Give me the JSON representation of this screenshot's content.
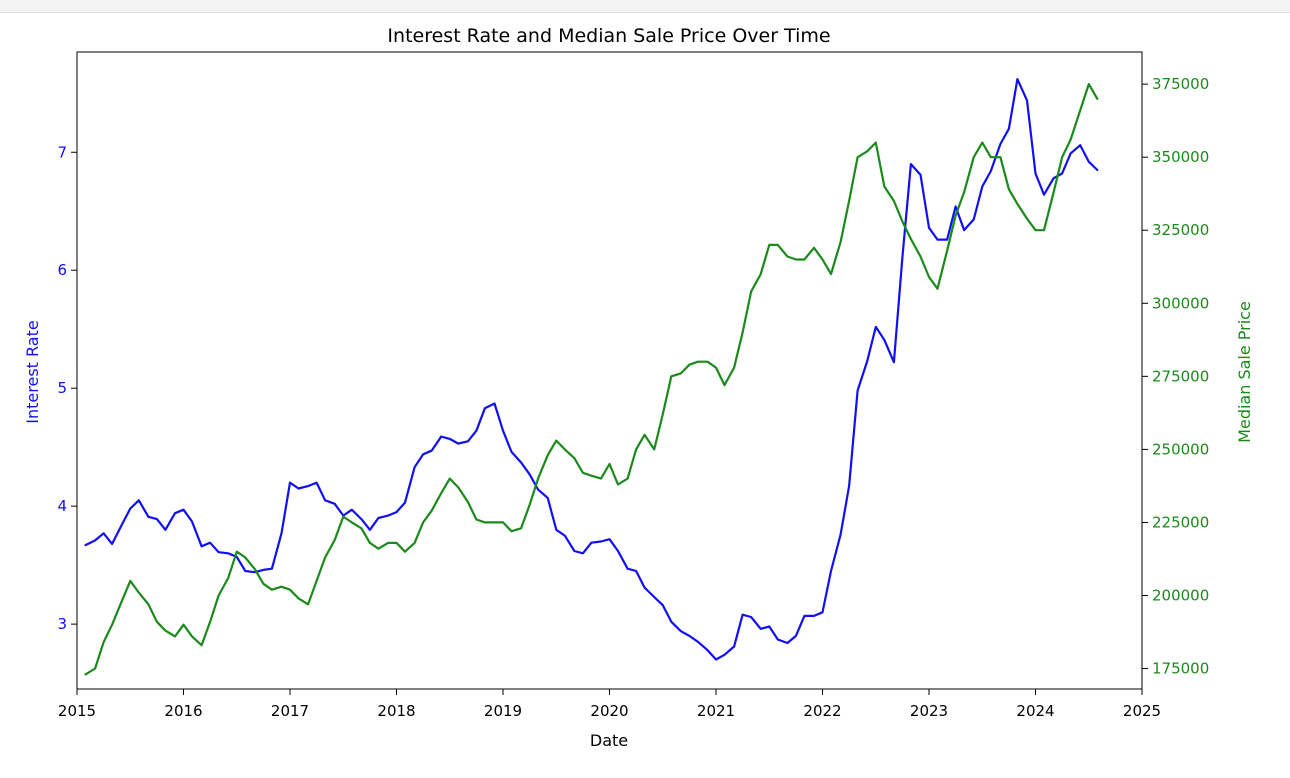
{
  "chart_data": {
    "type": "line",
    "title": "Interest Rate and Median Sale Price Over Time",
    "xlabel": "Date",
    "ylabel_left": "Interest Rate",
    "ylabel_right": "Median Sale Price",
    "xlim": [
      2015.0,
      2025.0
    ],
    "ylim_left": [
      2.45,
      7.85
    ],
    "ylim_right": [
      168000,
      386000
    ],
    "x_ticks": [
      "2015",
      "2016",
      "2017",
      "2018",
      "2019",
      "2020",
      "2021",
      "2022",
      "2023",
      "2024",
      "2025"
    ],
    "y_left_ticks": [
      "3",
      "4",
      "5",
      "6",
      "7"
    ],
    "y_right_ticks": [
      "175000",
      "200000",
      "225000",
      "250000",
      "275000",
      "300000",
      "325000",
      "350000",
      "375000"
    ],
    "grid": false,
    "colors": {
      "interest_rate": "#1010f0",
      "median_sale_price": "#1a8a1a"
    },
    "x": [
      2015.08,
      2015.17,
      2015.25,
      2015.33,
      2015.42,
      2015.5,
      2015.58,
      2015.67,
      2015.75,
      2015.83,
      2015.92,
      2016.0,
      2016.08,
      2016.17,
      2016.25,
      2016.33,
      2016.42,
      2016.5,
      2016.58,
      2016.67,
      2016.75,
      2016.83,
      2016.92,
      2017.0,
      2017.08,
      2017.17,
      2017.25,
      2017.33,
      2017.42,
      2017.5,
      2017.58,
      2017.67,
      2017.75,
      2017.83,
      2017.92,
      2018.0,
      2018.08,
      2018.17,
      2018.25,
      2018.33,
      2018.42,
      2018.5,
      2018.58,
      2018.67,
      2018.75,
      2018.83,
      2018.92,
      2019.0,
      2019.08,
      2019.17,
      2019.25,
      2019.33,
      2019.42,
      2019.5,
      2019.58,
      2019.67,
      2019.75,
      2019.83,
      2019.92,
      2020.0,
      2020.08,
      2020.17,
      2020.25,
      2020.33,
      2020.42,
      2020.5,
      2020.58,
      2020.67,
      2020.75,
      2020.83,
      2020.92,
      2021.0,
      2021.08,
      2021.17,
      2021.25,
      2021.33,
      2021.42,
      2021.5,
      2021.58,
      2021.67,
      2021.75,
      2021.83,
      2021.92,
      2022.0,
      2022.08,
      2022.17,
      2022.25,
      2022.33,
      2022.42,
      2022.5,
      2022.58,
      2022.67,
      2022.75,
      2022.83,
      2022.92,
      2023.0,
      2023.08,
      2023.17,
      2023.25,
      2023.33,
      2023.42,
      2023.5,
      2023.58,
      2023.67,
      2023.75,
      2023.83,
      2023.92,
      2024.0,
      2024.08,
      2024.17,
      2024.25,
      2024.33,
      2024.42,
      2024.5,
      2024.58
    ],
    "series": [
      {
        "name": "Interest Rate",
        "axis": "left",
        "values": [
          3.67,
          3.71,
          3.77,
          3.68,
          3.84,
          3.98,
          4.05,
          3.91,
          3.89,
          3.8,
          3.94,
          3.97,
          3.87,
          3.66,
          3.69,
          3.61,
          3.6,
          3.57,
          3.45,
          3.44,
          3.46,
          3.47,
          3.77,
          4.2,
          4.15,
          4.17,
          4.2,
          4.05,
          4.02,
          3.92,
          3.97,
          3.89,
          3.8,
          3.9,
          3.92,
          3.95,
          4.03,
          4.33,
          4.44,
          4.47,
          4.59,
          4.57,
          4.53,
          4.55,
          4.64,
          4.83,
          4.87,
          4.64,
          4.46,
          4.37,
          4.27,
          4.14,
          4.07,
          3.8,
          3.75,
          3.62,
          3.6,
          3.69,
          3.7,
          3.72,
          3.62,
          3.47,
          3.45,
          3.31,
          3.23,
          3.16,
          3.02,
          2.94,
          2.9,
          2.85,
          2.78,
          2.7,
          2.74,
          2.81,
          3.08,
          3.06,
          2.96,
          2.98,
          2.87,
          2.84,
          2.9,
          3.07,
          3.07,
          3.1,
          3.45,
          3.76,
          4.17,
          4.98,
          5.23,
          5.52,
          5.41,
          5.22,
          6.11,
          6.9,
          6.81,
          6.36,
          6.26,
          6.26,
          6.54,
          6.34,
          6.43,
          6.71,
          6.84,
          7.07,
          7.2,
          7.62,
          7.44,
          6.82,
          6.64,
          6.78,
          6.82,
          6.99,
          7.06,
          6.92,
          6.85
        ]
      },
      {
        "name": "Median Sale Price",
        "axis": "right",
        "values": [
          173000,
          175000,
          184000,
          190000,
          198000,
          205000,
          201000,
          197000,
          191000,
          188000,
          186000,
          190000,
          186000,
          183000,
          191000,
          200000,
          206000,
          215000,
          213000,
          209000,
          204000,
          202000,
          203000,
          202000,
          199000,
          197000,
          205000,
          213000,
          219000,
          227000,
          225000,
          223000,
          218000,
          216000,
          218000,
          218000,
          215000,
          218000,
          225000,
          229000,
          235000,
          240000,
          237000,
          232000,
          226000,
          225000,
          225000,
          225000,
          222000,
          223000,
          231000,
          240000,
          248000,
          253000,
          250000,
          247000,
          242000,
          241000,
          240000,
          245000,
          238000,
          240000,
          250000,
          255000,
          250000,
          262000,
          275000,
          276000,
          279000,
          280000,
          280000,
          278000,
          272000,
          278000,
          290000,
          304000,
          310000,
          320000,
          320000,
          316000,
          315000,
          315000,
          319000,
          315000,
          310000,
          321000,
          335000,
          350000,
          352000,
          355000,
          340000,
          335000,
          328000,
          322000,
          316000,
          309000,
          305000,
          318000,
          330000,
          338000,
          350000,
          355000,
          350000,
          350000,
          339000,
          334000,
          329000,
          325000,
          325000,
          338000,
          350000,
          356000,
          366000,
          375000,
          370000
        ]
      }
    ]
  }
}
